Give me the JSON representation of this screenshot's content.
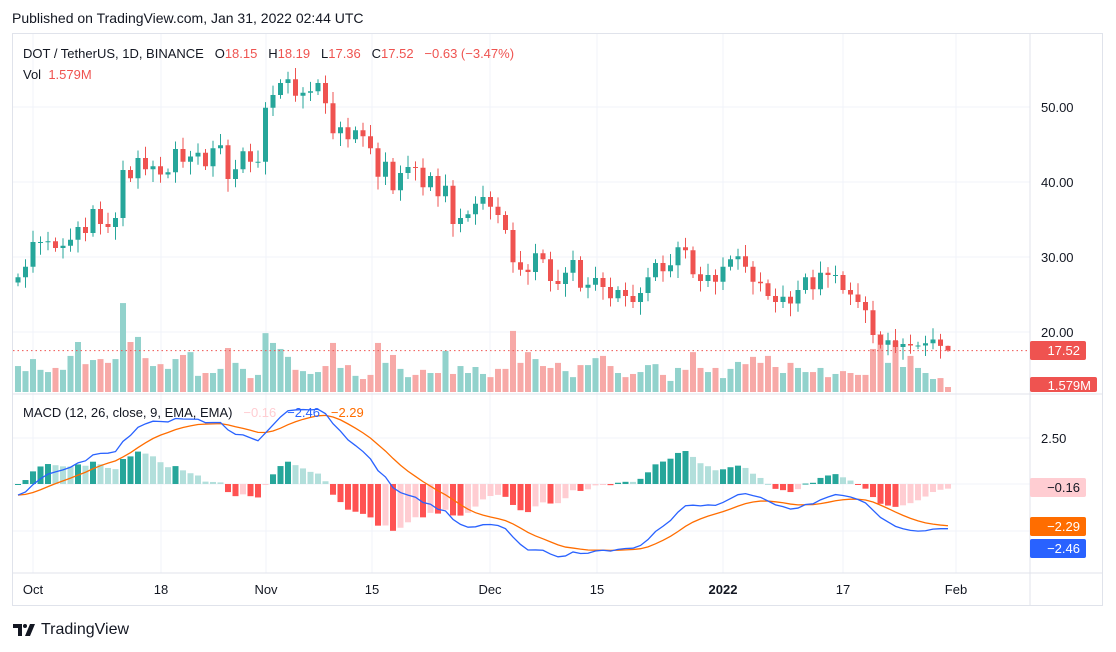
{
  "header": {
    "published": "Published on TradingView.com, Jan 31, 2022 02:44 UTC"
  },
  "legend": {
    "symbol": "DOT / TetherUS, 1D, BINANCE",
    "o_label": "O",
    "o": "18.15",
    "h_label": "H",
    "h": "18.19",
    "l_label": "L",
    "l": "17.36",
    "c_label": "C",
    "c": "17.52",
    "change": "−0.63 (−3.47%)",
    "vol_label": "Vol",
    "vol": "1.579M"
  },
  "macd_legend": {
    "title": "MACD (12, 26, close, 9, EMA, EMA)",
    "hist": "−0.16",
    "macd": "−2.46",
    "signal": "−2.29"
  },
  "price_axis": {
    "ticks": [
      "50.00",
      "40.00",
      "30.00",
      "20.00"
    ],
    "last_price_tag": "17.52",
    "volume_tag": "1.579M"
  },
  "macd_axis": {
    "ticks": [
      "2.50"
    ],
    "hist_tag": "−0.16",
    "signal_tag": "−2.29",
    "macd_tag": "−2.46"
  },
  "time_axis": {
    "labels": [
      "Oct",
      "18",
      "Nov",
      "15",
      "Dec",
      "15",
      "2022",
      "17",
      "Feb"
    ]
  },
  "footer": {
    "logo_text": "TradingView"
  },
  "colors": {
    "up": "#26a69a",
    "down": "#ef5350",
    "vol_up": "#92d2cc",
    "vol_down": "#f7a9a7",
    "macd": "#2962ff",
    "signal": "#ff6d00",
    "hist_up_strong": "#26a69a",
    "hist_up_weak": "#b2dfdb",
    "hist_down_strong": "#ff5252",
    "hist_down_weak": "#ffcdd2"
  },
  "chart_data": {
    "type": "candlestick",
    "title": "DOT / TetherUS, 1D, BINANCE",
    "first_open": 26.6,
    "last_candle": {
      "open": 18.15,
      "high": 18.19,
      "low": 17.36,
      "close": 17.52
    },
    "close": [
      27.3,
      28.7,
      32,
      32,
      32.1,
      31.2,
      31.5,
      32.3,
      34,
      33.2,
      36.4,
      34.4,
      34,
      35.2,
      41.6,
      40.5,
      43.2,
      41.7,
      42.1,
      41,
      41.3,
      44.4,
      42.7,
      43.4,
      43.9,
      42.1,
      44.5,
      44.9,
      40.4,
      41.7,
      44.1,
      42.7,
      42.7,
      49.9,
      51.6,
      53.2,
      53.7,
      51.5,
      51.9,
      52.1,
      53.2,
      50.5,
      46.5,
      47.3,
      45.7,
      46.9,
      46.1,
      44.5,
      40.7,
      42.7,
      38.9,
      41.2,
      42,
      41.9,
      39.3,
      40.8,
      38.1,
      39.5,
      34.4,
      35.2,
      35.7,
      37.1,
      38,
      36.7,
      35.6,
      33.6,
      29.3,
      28.3,
      28,
      30.5,
      29.7,
      26.8,
      26.4,
      27.9,
      29.6,
      25.9,
      26.3,
      27.2,
      26,
      24.5,
      25.6,
      24.8,
      24,
      25.2,
      27.3,
      29.2,
      28.1,
      28.9,
      31.3,
      30.9,
      27.7,
      26.8,
      27.6,
      26.7,
      28.7,
      29.7,
      30.1,
      28.7,
      26.7,
      26.5,
      24.8,
      24,
      24.7,
      23.8,
      25.6,
      27.3,
      25.7,
      27.9,
      27.6,
      27.6,
      25.6,
      25,
      24,
      22.9,
      19.6,
      18.3,
      18.9,
      18,
      18.4,
      18.2,
      18.2,
      18.5,
      19,
      18.15,
      17.52
    ],
    "volume_m": [
      8.2,
      6.6,
      10.4,
      7.0,
      6.3,
      7.6,
      7.0,
      11.4,
      15.8,
      8.8,
      10.1,
      10.4,
      9.2,
      10.4,
      28.1,
      15.8,
      17.4,
      10.7,
      8.2,
      8.8,
      7.3,
      10.4,
      11.7,
      12.6,
      5.1,
      6.0,
      6.0,
      7.3,
      13.9,
      9.2,
      7.3,
      4.4,
      5.4,
      18.6,
      15.5,
      13.6,
      11.1,
      7.0,
      6.6,
      5.7,
      6.3,
      8.2,
      15.5,
      7.6,
      8.5,
      5.1,
      4.1,
      5.4,
      15.5,
      9.2,
      11.7,
      7.3,
      4.7,
      5.4,
      7.0,
      6.0,
      6.0,
      13.0,
      5.7,
      8.2,
      6.0,
      7.9,
      5.7,
      4.7,
      7.3,
      7.3,
      19.3,
      9.2,
      12.6,
      10.4,
      8.2,
      7.6,
      9.2,
      6.6,
      4.7,
      8.5,
      8.5,
      10.7,
      11.4,
      8.2,
      6.0,
      4.7,
      5.7,
      6.3,
      8.5,
      8.8,
      5.4,
      3.5,
      7.6,
      7.0,
      12.6,
      7.6,
      6.3,
      7.6,
      4.4,
      7.3,
      9.5,
      8.8,
      11.1,
      9.2,
      11.4,
      7.9,
      6.0,
      9.2,
      7.6,
      6.3,
      6.3,
      7.6,
      4.7,
      5.7,
      6.6,
      6.0,
      5.4,
      5.4,
      13.6,
      18.3,
      9.2,
      16.1,
      7.9,
      11.4,
      7.6,
      6.0,
      4.1,
      4.4,
      1.579
    ],
    "ylim": [
      16.5,
      57
    ],
    "macd_params": {
      "fast": 12,
      "slow": 26,
      "signal": 9
    }
  }
}
